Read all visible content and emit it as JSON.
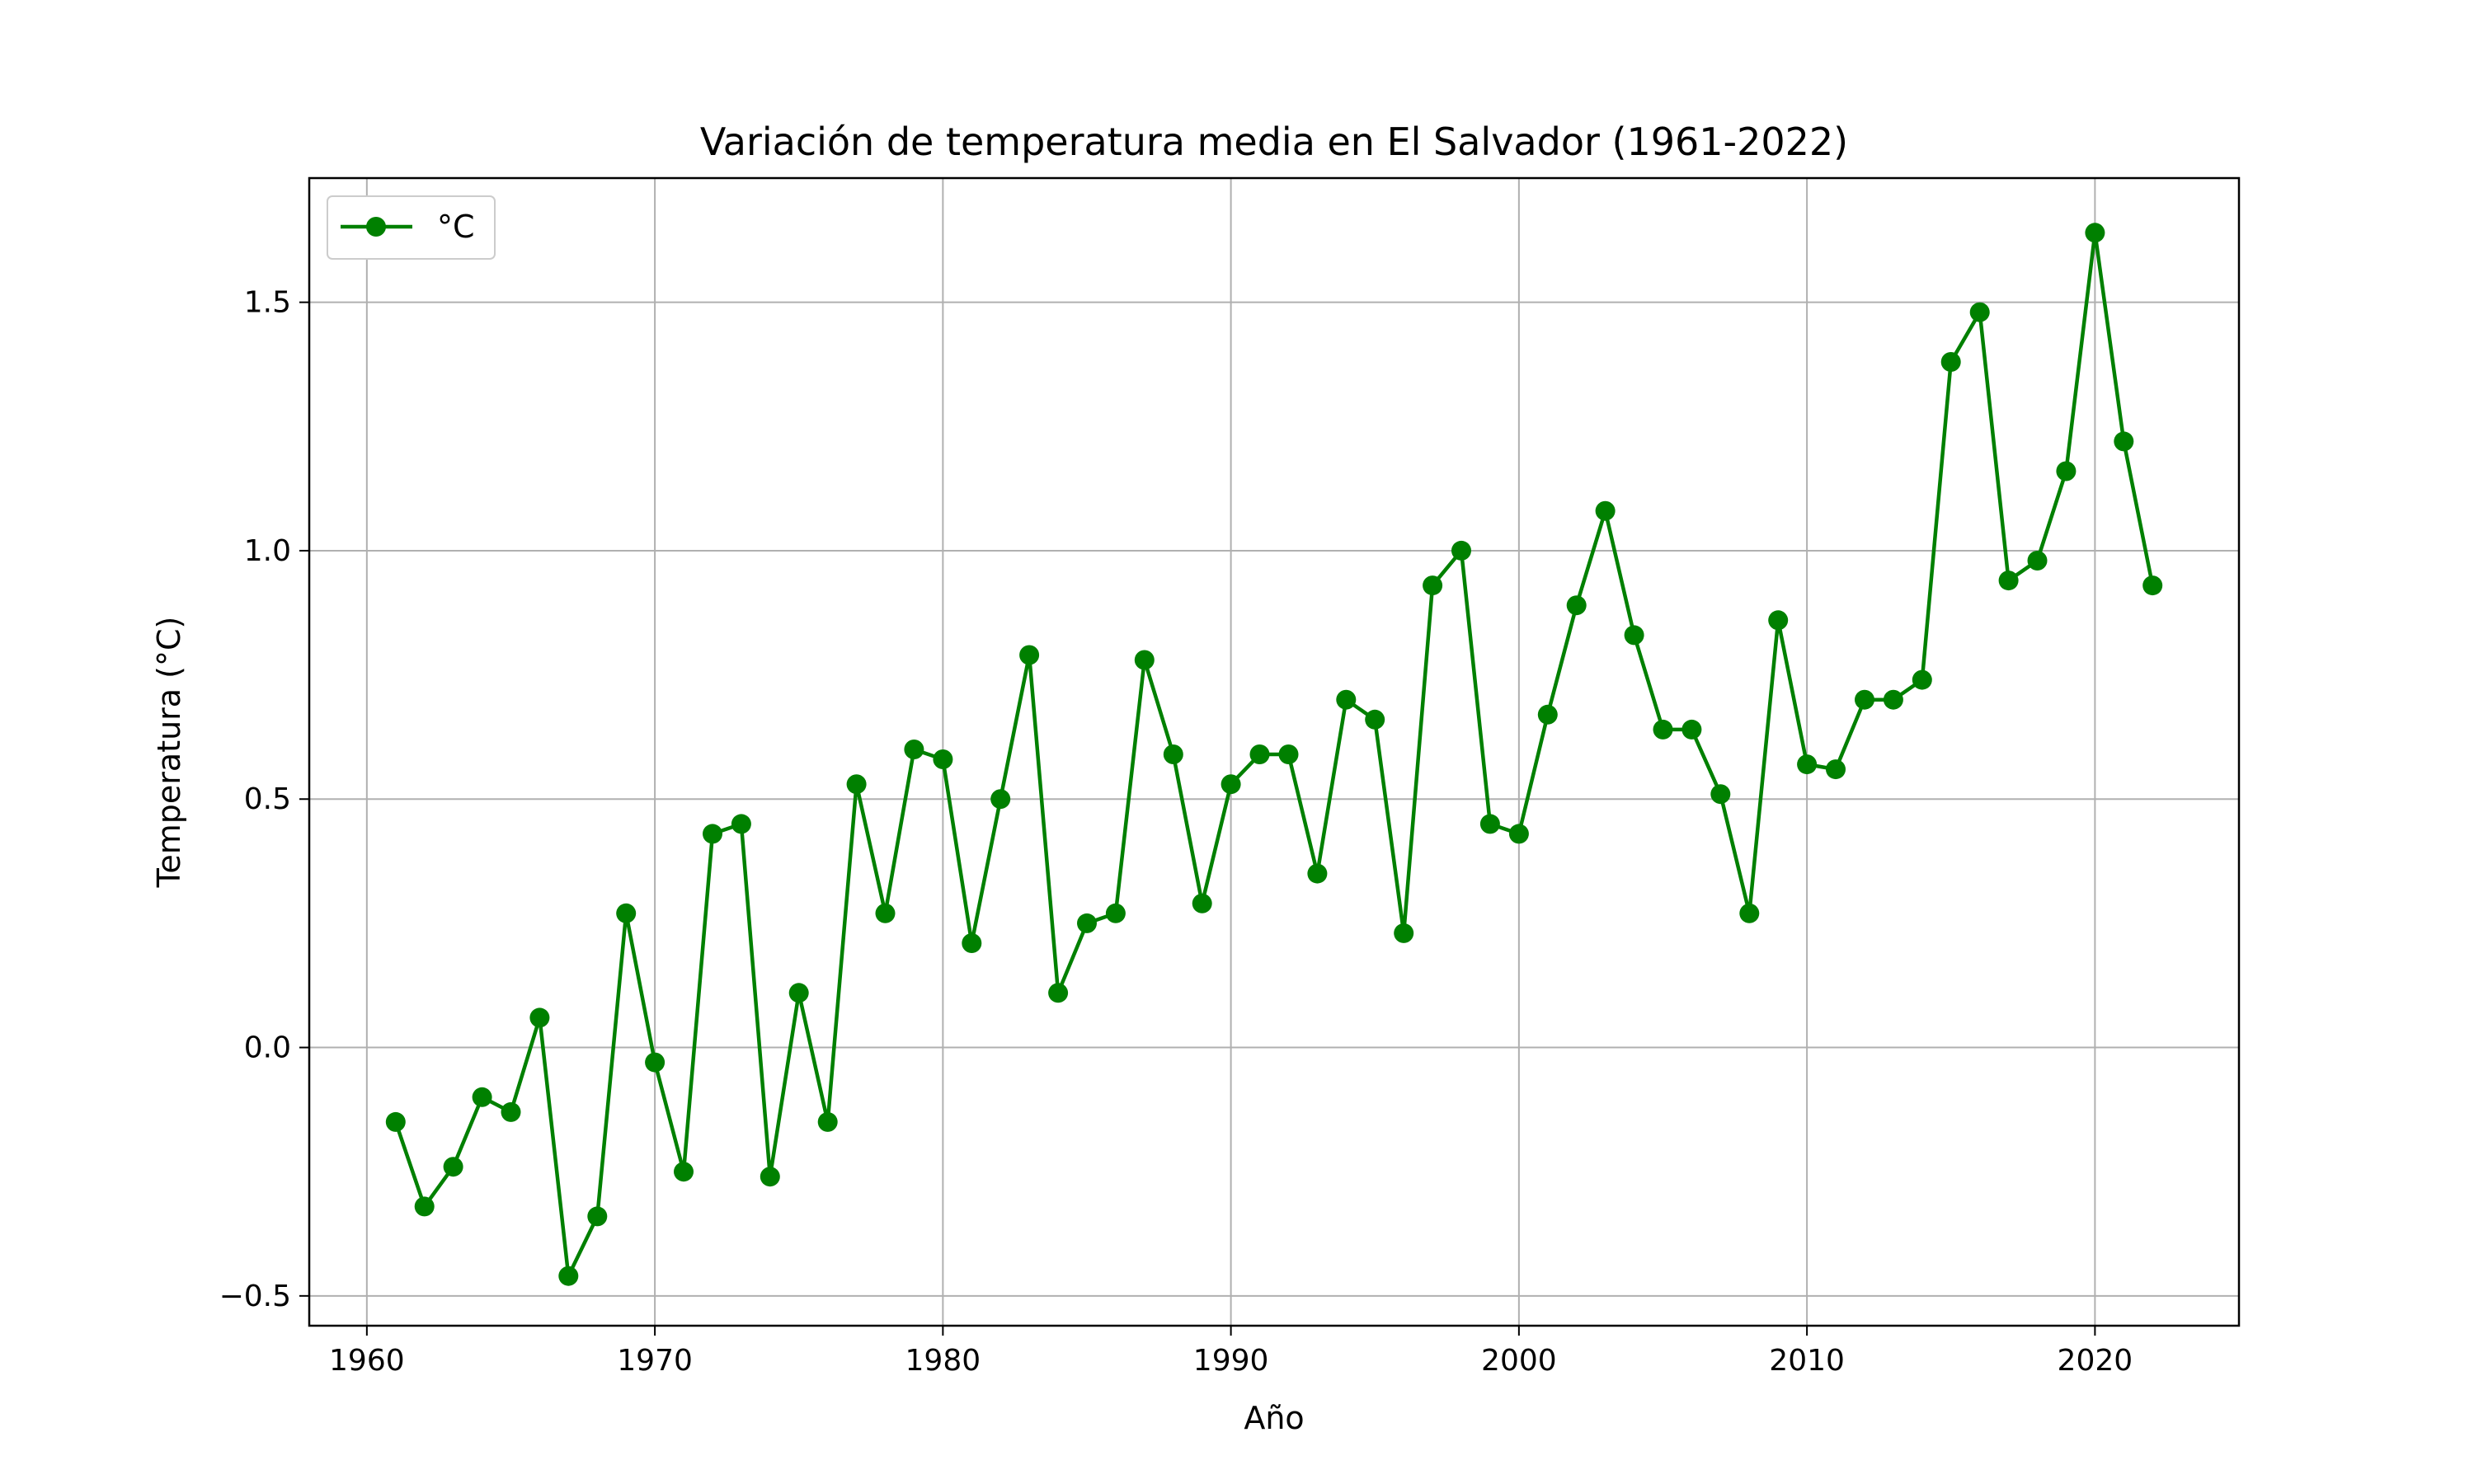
{
  "chart_data": {
    "type": "line",
    "title": "Variación de temperatura media en El Salvador (1961-2022)",
    "xlabel": "Año",
    "ylabel": "Temperatura (°C)",
    "xlim": [
      1958,
      2025
    ],
    "ylim": [
      -0.56,
      1.75
    ],
    "x_ticks": [
      1960,
      1970,
      1980,
      1990,
      2000,
      2010,
      2020
    ],
    "y_ticks": [
      -0.5,
      0.0,
      0.5,
      1.0,
      1.5
    ],
    "y_tick_labels": [
      "−0.5",
      "0.0",
      "0.5",
      "1.0",
      "1.5"
    ],
    "grid": true,
    "legend_position": "top-left",
    "color": "#008000",
    "series": [
      {
        "name": "°C",
        "x": [
          1961,
          1962,
          1963,
          1964,
          1965,
          1966,
          1967,
          1968,
          1969,
          1970,
          1971,
          1972,
          1973,
          1974,
          1975,
          1976,
          1977,
          1978,
          1979,
          1980,
          1981,
          1982,
          1983,
          1984,
          1985,
          1986,
          1987,
          1988,
          1989,
          1990,
          1991,
          1992,
          1993,
          1994,
          1995,
          1996,
          1997,
          1998,
          1999,
          2000,
          2001,
          2002,
          2003,
          2004,
          2005,
          2006,
          2007,
          2008,
          2009,
          2010,
          2011,
          2012,
          2013,
          2014,
          2015,
          2016,
          2017,
          2018,
          2019,
          2020,
          2021,
          2022
        ],
        "y": [
          -0.15,
          -0.32,
          -0.24,
          -0.1,
          -0.13,
          0.06,
          -0.46,
          -0.34,
          0.27,
          -0.03,
          -0.25,
          0.43,
          0.45,
          -0.26,
          0.11,
          -0.15,
          0.53,
          0.27,
          0.6,
          0.58,
          0.21,
          0.5,
          0.79,
          0.11,
          0.25,
          0.27,
          0.78,
          0.59,
          0.29,
          0.53,
          0.59,
          0.59,
          0.35,
          0.7,
          0.66,
          0.23,
          0.93,
          1.0,
          0.45,
          0.43,
          0.67,
          0.89,
          1.08,
          0.83,
          0.64,
          0.64,
          0.51,
          0.27,
          0.86,
          0.57,
          0.56,
          0.7,
          0.7,
          0.74,
          1.38,
          1.48,
          0.94,
          0.98,
          1.16,
          1.64,
          1.22,
          0.93
        ]
      }
    ]
  }
}
